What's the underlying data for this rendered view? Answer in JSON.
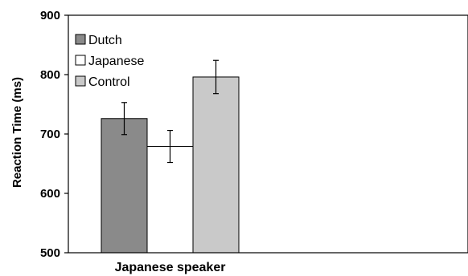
{
  "chart_data": {
    "type": "bar",
    "categories": [
      "Japanese speaker"
    ],
    "ylabel": "Reaction Time (ms)",
    "ylim": [
      500,
      900
    ],
    "yticks": [
      500,
      600,
      700,
      800,
      900
    ],
    "legend": "top-left",
    "grid": false,
    "series": [
      {
        "name": "Dutch",
        "values": [
          726
        ],
        "error": [
          27
        ],
        "color": "#8a8a8a"
      },
      {
        "name": "Japanese",
        "values": [
          679
        ],
        "error": [
          27
        ],
        "color": "#ffffff"
      },
      {
        "name": "Control",
        "values": [
          796
        ],
        "error": [
          28
        ],
        "color": "#c9c9c9"
      }
    ]
  }
}
